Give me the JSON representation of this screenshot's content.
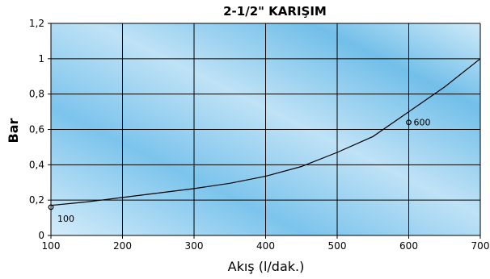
{
  "chart_data": {
    "type": "line",
    "title": "2-1/2\" KARIŞIM",
    "xlabel": "Akış (l/dak.)",
    "ylabel": "Bar",
    "xlim": [
      100,
      700
    ],
    "ylim": [
      0,
      1.2
    ],
    "x_ticks": [
      {
        "value": 100,
        "label": "100"
      },
      {
        "value": 200,
        "label": "200"
      },
      {
        "value": 300,
        "label": "300"
      },
      {
        "value": 400,
        "label": "400"
      },
      {
        "value": 500,
        "label": "500"
      },
      {
        "value": 600,
        "label": "600"
      },
      {
        "value": 700,
        "label": "700"
      }
    ],
    "y_ticks": [
      {
        "value": 0,
        "label": "0"
      },
      {
        "value": 0.2,
        "label": "0,2"
      },
      {
        "value": 0.4,
        "label": "0,4"
      },
      {
        "value": 0.6,
        "label": "0,6"
      },
      {
        "value": 0.8,
        "label": "0,8"
      },
      {
        "value": 1.0,
        "label": "1"
      },
      {
        "value": 1.2,
        "label": "1,2"
      }
    ],
    "grid": true,
    "series": [
      {
        "x": [
          100,
          150,
          200,
          250,
          300,
          350,
          400,
          450,
          500,
          550,
          600,
          650,
          700
        ],
        "y": [
          0.17,
          0.19,
          0.215,
          0.24,
          0.265,
          0.295,
          0.335,
          0.39,
          0.47,
          0.56,
          0.7,
          0.84,
          1.0
        ],
        "color": "#000000"
      }
    ],
    "annotations": [
      {
        "x": 100,
        "y": 0.16,
        "text": "100"
      },
      {
        "x": 600,
        "y": 0.64,
        "text": "600"
      }
    ],
    "colors": {
      "plot_gradient_light": "#cfe9f8",
      "plot_gradient_dark": "#79c2ea",
      "grid": "#000000",
      "line": "#000000"
    }
  }
}
